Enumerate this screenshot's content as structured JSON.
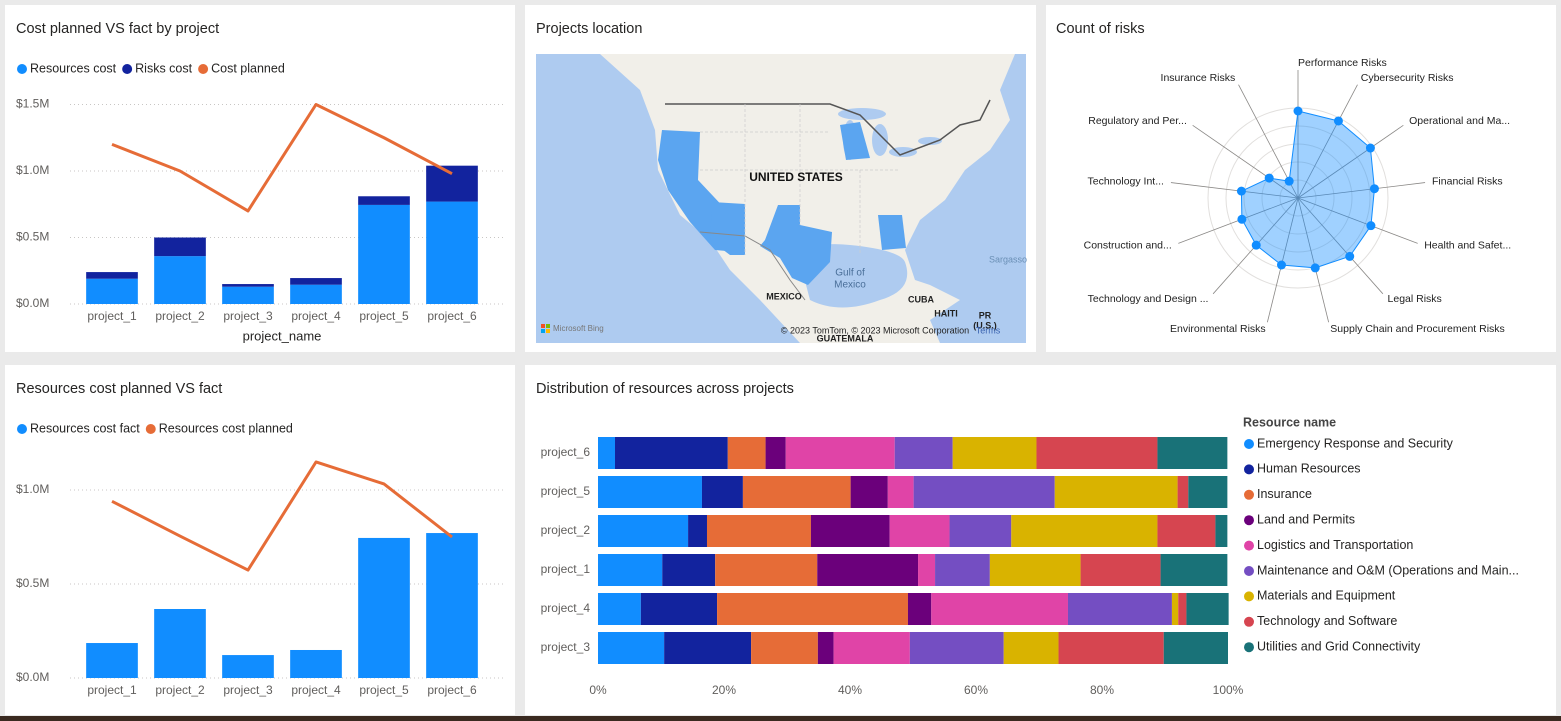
{
  "chart_data": [
    {
      "type": "bar",
      "title": "Cost planned VS fact by project",
      "stacked": true,
      "x_label": "project_name",
      "categories": [
        "project_1",
        "project_2",
        "project_3",
        "project_4",
        "project_5",
        "project_6"
      ],
      "series": [
        {
          "name": "Resources cost",
          "type": "bar",
          "color": "#118dff",
          "values": [
            190000,
            360000,
            130000,
            145000,
            745000,
            770000
          ]
        },
        {
          "name": "Risks cost",
          "type": "bar",
          "color": "#12239e",
          "values": [
            50000,
            140000,
            20000,
            50000,
            65000,
            270000
          ]
        },
        {
          "name": "Cost planned",
          "type": "line",
          "color": "#e66c37",
          "values": [
            1200000,
            1000000,
            700000,
            1500000,
            1250000,
            980000
          ]
        }
      ],
      "ylim": [
        0,
        1600000
      ],
      "yticks": [
        {
          "value": 0,
          "label": "$0.0M"
        },
        {
          "value": 500000,
          "label": "$0.5M"
        },
        {
          "value": 1000000,
          "label": "$1.0M"
        },
        {
          "value": 1500000,
          "label": "$1.5M"
        }
      ],
      "grid": true
    },
    {
      "type": "map",
      "title": "Projects location",
      "labels": [
        "UNITED STATES",
        "Gulf of",
        "Mexico",
        "MEXICO",
        "CUBA",
        "HAITI",
        "PR",
        "(U.S.)",
        "Sargasso",
        "GUATEMALA",
        "© 2023 TomTom, © 2023 Microsoft Corporation",
        "Terms",
        "Microsoft Bing"
      ]
    },
    {
      "type": "radar",
      "title": "Count of risks",
      "color": "#118dff",
      "categories": [
        "Performance Risks",
        "Cybersecurity Risks",
        "Operational and Ma...",
        "Financial Risks",
        "Health and Safet...",
        "Legal Risks",
        "Supply Chain and Procurement Risks",
        "Environmental Risks",
        "Technology and Design ...",
        "Construction and...",
        "Technology Int...",
        "Regulatory and Per...",
        "Insurance Risks"
      ],
      "values": [
        8.7,
        8.7,
        8.8,
        7.7,
        7.8,
        7.8,
        7.2,
        6.9,
        6.3,
        6.0,
        5.7,
        3.5,
        1.9
      ],
      "ylim": [
        0,
        10
      ]
    },
    {
      "type": "bar",
      "title": "Resources cost planned VS fact",
      "stacked": false,
      "categories": [
        "project_1",
        "project_2",
        "project_3",
        "project_4",
        "project_5",
        "project_6"
      ],
      "series": [
        {
          "name": "Resources cost fact",
          "type": "bar",
          "color": "#118dff",
          "values": [
            186000,
            367000,
            122000,
            149000,
            745000,
            771000
          ]
        },
        {
          "name": "Resources cost planned",
          "type": "line",
          "color": "#e66c37",
          "values": [
            940000,
            755000,
            574000,
            1149000,
            1032000,
            750000
          ]
        }
      ],
      "ylim": [
        0,
        1250000
      ],
      "yticks": [
        {
          "value": 0,
          "label": "$0.0M"
        },
        {
          "value": 500000,
          "label": "$0.5M"
        },
        {
          "value": 1000000,
          "label": "$1.0M"
        }
      ],
      "grid": true
    },
    {
      "type": "bar",
      "orientation": "horizontal",
      "stacked": true,
      "title": "Distribution of resources across projects",
      "legend_title": "Resource name",
      "categories": [
        "project_6",
        "project_5",
        "project_2",
        "project_1",
        "project_4",
        "project_3"
      ],
      "series": [
        {
          "name": "Emergency Response and Security",
          "color": "#118dff",
          "values": [
            2.7,
            16.5,
            14.3,
            10.2,
            6.8,
            10.5
          ]
        },
        {
          "name": "Human Resources",
          "color": "#12239e",
          "values": [
            17.9,
            6.5,
            3.0,
            8.4,
            12.1,
            13.8
          ]
        },
        {
          "name": "Insurance",
          "color": "#e66c37",
          "values": [
            6.0,
            17.1,
            16.5,
            16.2,
            30.3,
            10.6
          ]
        },
        {
          "name": "Land and Permits",
          "color": "#6b007b",
          "values": [
            3.2,
            5.9,
            12.5,
            16.0,
            3.7,
            2.5
          ]
        },
        {
          "name": "Logistics and Transportation",
          "color": "#e044a7",
          "values": [
            17.3,
            4.1,
            9.5,
            2.7,
            21.7,
            12.1
          ]
        },
        {
          "name": "Maintenance and O&M (Operations and Main...",
          "color": "#744ec2",
          "values": [
            9.2,
            22.4,
            9.8,
            8.7,
            16.5,
            14.9
          ]
        },
        {
          "name": "Materials and Equipment",
          "color": "#d9b300",
          "values": [
            13.3,
            19.5,
            23.2,
            14.4,
            1.0,
            8.7
          ]
        },
        {
          "name": "Technology and Software",
          "color": "#d64550",
          "values": [
            19.2,
            1.7,
            9.2,
            12.7,
            1.3,
            16.7
          ]
        },
        {
          "name": "Utilities and Grid Connectivity",
          "color": "#197278",
          "values": [
            11.1,
            6.2,
            1.9,
            10.6,
            6.7,
            10.2
          ]
        }
      ],
      "xlim": [
        0,
        100
      ],
      "xticks": [
        {
          "value": 0,
          "label": "0%"
        },
        {
          "value": 20,
          "label": "20%"
        },
        {
          "value": 40,
          "label": "40%"
        },
        {
          "value": 60,
          "label": "60%"
        },
        {
          "value": 80,
          "label": "80%"
        },
        {
          "value": 100,
          "label": "100%"
        }
      ]
    }
  ]
}
